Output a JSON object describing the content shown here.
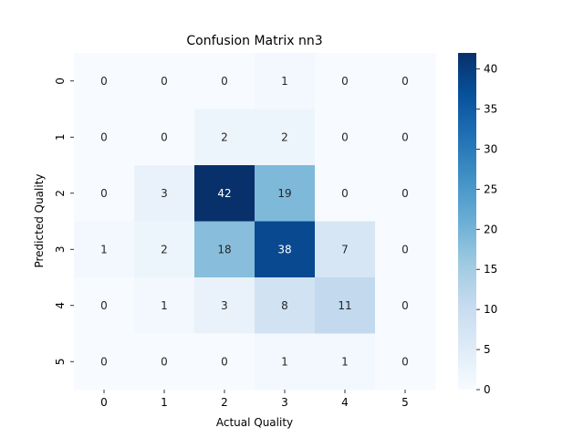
{
  "chart_data": {
    "type": "heatmap",
    "title": "Confusion Matrix nn3",
    "xlabel": "Actual Quality",
    "ylabel": "Predicted Quality",
    "x_categories": [
      "0",
      "1",
      "2",
      "3",
      "4",
      "5"
    ],
    "y_categories": [
      "0",
      "1",
      "2",
      "3",
      "4",
      "5"
    ],
    "values": [
      [
        0,
        0,
        0,
        1,
        0,
        0
      ],
      [
        0,
        0,
        2,
        2,
        0,
        0
      ],
      [
        0,
        3,
        42,
        19,
        0,
        0
      ],
      [
        1,
        2,
        18,
        38,
        7,
        0
      ],
      [
        0,
        1,
        3,
        8,
        11,
        0
      ],
      [
        0,
        0,
        0,
        1,
        1,
        0
      ]
    ],
    "colorbar": {
      "min": 0,
      "max": 42,
      "ticks": [
        0,
        5,
        10,
        15,
        20,
        25,
        30,
        35,
        40
      ]
    },
    "colormap": "Blues",
    "annotations": true,
    "grid": false
  }
}
